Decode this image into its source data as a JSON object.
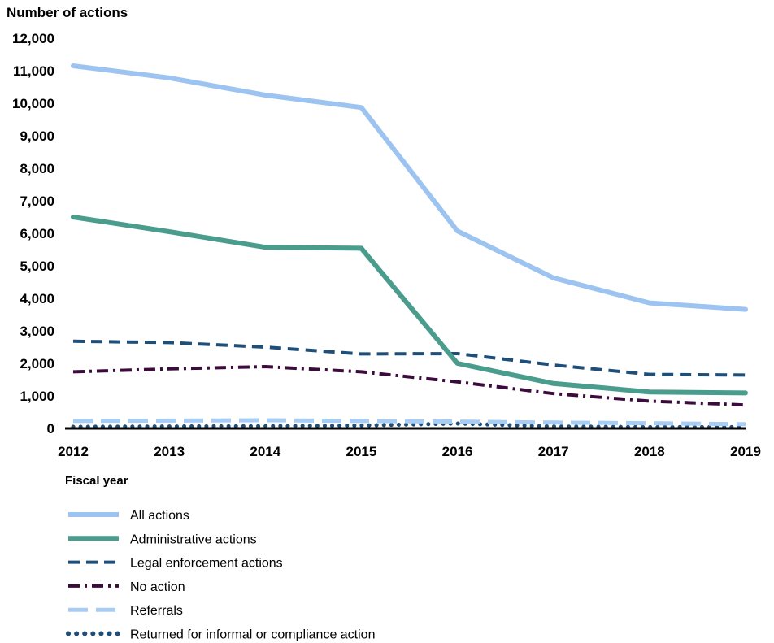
{
  "chart_data": {
    "type": "line",
    "ylabel": "Number of actions",
    "xlabel": "Fiscal year",
    "categories": [
      "2012",
      "2013",
      "2014",
      "2015",
      "2016",
      "2017",
      "2018",
      "2019"
    ],
    "ylim": [
      0,
      12000
    ],
    "yticks": [
      0,
      1000,
      2000,
      3000,
      4000,
      5000,
      6000,
      7000,
      8000,
      9000,
      10000,
      11000,
      12000
    ],
    "ytick_labels": [
      "0",
      "1,000",
      "2,000",
      "3,000",
      "4,000",
      "5,000",
      "6,000",
      "7,000",
      "8,000",
      "9,000",
      "10,000",
      "11,000",
      "12,000"
    ],
    "grid": false,
    "legend_position": "bottom",
    "series": [
      {
        "name": "All actions",
        "values": [
          11150,
          10780,
          10250,
          9870,
          6070,
          4630,
          3860,
          3660
        ],
        "color": "#9dc3f0",
        "style": "solid"
      },
      {
        "name": "Administrative actions",
        "values": [
          6500,
          6050,
          5570,
          5540,
          2000,
          1380,
          1120,
          1090
        ],
        "color": "#4a9c8c",
        "style": "solid"
      },
      {
        "name": "Legal enforcement actions",
        "values": [
          2680,
          2640,
          2500,
          2290,
          2300,
          1950,
          1660,
          1640
        ],
        "color": "#1f4e79",
        "style": "dash"
      },
      {
        "name": "No action",
        "values": [
          1740,
          1830,
          1900,
          1740,
          1430,
          1070,
          840,
          720
        ],
        "color": "#3b0b3b",
        "style": "dashdot"
      },
      {
        "name": "Referrals",
        "values": [
          230,
          240,
          250,
          230,
          210,
          180,
          160,
          130
        ],
        "color": "#a8cdf5",
        "style": "longdash"
      },
      {
        "name": "Returned for informal or compliance action",
        "values": [
          50,
          60,
          70,
          90,
          150,
          60,
          40,
          40
        ],
        "color": "#1f4e79",
        "style": "dot"
      }
    ]
  }
}
